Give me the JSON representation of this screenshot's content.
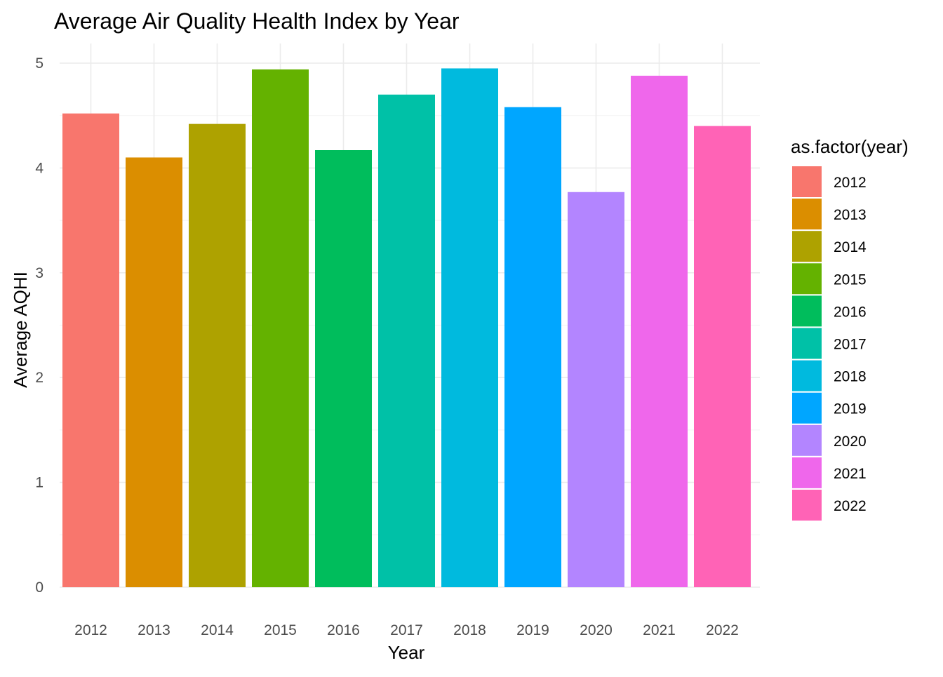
{
  "chart_data": {
    "type": "bar",
    "title": "Average Air Quality Health Index by Year",
    "xlabel": "Year",
    "ylabel": "Average AQHI",
    "categories": [
      "2012",
      "2013",
      "2014",
      "2015",
      "2016",
      "2017",
      "2018",
      "2019",
      "2020",
      "2021",
      "2022"
    ],
    "values": [
      4.52,
      4.1,
      4.42,
      4.94,
      4.17,
      4.7,
      4.95,
      4.58,
      3.77,
      4.88,
      4.4
    ],
    "colors": [
      "#F8766D",
      "#DB8E00",
      "#AEA200",
      "#64B200",
      "#00BD5C",
      "#00C1A7",
      "#00BADE",
      "#00A6FF",
      "#B385FF",
      "#EF67EB",
      "#FF63B6"
    ],
    "ylim": [
      0,
      5.2
    ],
    "yticks": [
      0,
      1,
      2,
      3,
      4,
      5
    ],
    "grid": true,
    "legend": {
      "title": "as.factor(year)",
      "position": "right",
      "entries": [
        "2012",
        "2013",
        "2014",
        "2015",
        "2016",
        "2017",
        "2018",
        "2019",
        "2020",
        "2021",
        "2022"
      ]
    }
  }
}
